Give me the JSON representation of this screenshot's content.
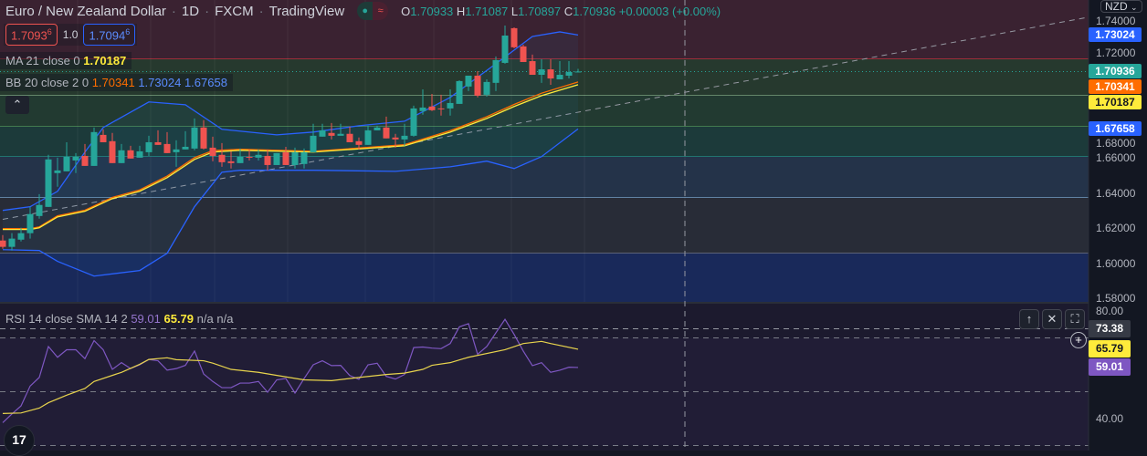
{
  "header": {
    "symbol": "Euro / New Zealand Dollar",
    "interval": "1D",
    "exchange": "FXCM",
    "source": "TradingView",
    "sep": "·",
    "ohlc": {
      "o_label": "O",
      "o": "1.70933",
      "h_label": "H",
      "h": "1.71087",
      "l_label": "L",
      "l": "1.70897",
      "c_label": "C",
      "c": "1.70936",
      "change": "+0.00003 (+0.00%)"
    }
  },
  "bid_ask": {
    "sell_main": "1.7093",
    "sell_pip": "6",
    "spread": "1.0",
    "buy_main": "1.7094",
    "buy_pip": "6"
  },
  "indicators": {
    "ma": {
      "label": "MA 21 close 0",
      "value": "1.70187",
      "color": "#ffeb3b"
    },
    "bb": {
      "label": "BB 20 close 2 0",
      "basis": "1.70341",
      "upper": "1.73024",
      "lower": "1.67658",
      "basis_color": "#ff6d00",
      "band_color": "#2962ff"
    },
    "rsi": {
      "label": "RSI 14 close SMA 14 2",
      "rsi": "59.01",
      "sma": "65.79",
      "na1": "n/a",
      "na2": "n/a",
      "rsi_color": "#7e57c2",
      "sma_color": "#ffeb3b"
    }
  },
  "collapse_icon": "chevron-up-icon",
  "currency": "NZD",
  "price_axis": {
    "ticks": [
      "1.74000",
      "1.72000",
      "1.68000",
      "1.66000",
      "1.64000",
      "1.62000",
      "1.60000",
      "1.58000"
    ],
    "badges": [
      {
        "value": "1.73024",
        "color": "#2962ff",
        "text": "#ffffff"
      },
      {
        "value": "1.70936",
        "color": "#26a69a",
        "text": "#ffffff"
      },
      {
        "value": "1.70341",
        "color": "#ff6d00",
        "text": "#ffffff"
      },
      {
        "value": "1.70187",
        "color": "#ffeb3b",
        "text": "#131722"
      },
      {
        "value": "1.67658",
        "color": "#2962ff",
        "text": "#ffffff"
      }
    ]
  },
  "rsi_axis": {
    "ticks": [
      "80.00",
      "40.00"
    ],
    "badges": [
      {
        "value": "73.38",
        "color": "#363a45",
        "text": "#ffffff"
      },
      {
        "value": "65.79",
        "color": "#ffeb3b",
        "text": "#131722"
      },
      {
        "value": "59.01",
        "color": "#7e57c2",
        "text": "#ffffff"
      }
    ]
  },
  "pane_buttons": [
    "arrow-up-icon",
    "close-icon",
    "maximize-icon"
  ],
  "logo": "TV",
  "chart_data": [
    {
      "type": "candlestick",
      "up_color": "#26a69a",
      "down_color": "#ef5350",
      "ylim": [
        1.58,
        1.745
      ],
      "y_ticks": [
        1.58,
        1.6,
        1.62,
        1.64,
        1.66,
        1.68,
        1.7,
        1.72,
        1.74
      ],
      "ohlc": [
        [
          1.6129,
          1.616,
          1.6082,
          1.6093
        ],
        [
          1.6093,
          1.6171,
          1.6072,
          1.614
        ],
        [
          1.6134,
          1.6202,
          1.6124,
          1.6171
        ],
        [
          1.6171,
          1.6321,
          1.614,
          1.628
        ],
        [
          1.6269,
          1.6394,
          1.6254,
          1.6332
        ],
        [
          1.6321,
          1.6618,
          1.6321,
          1.6592
        ],
        [
          1.6514,
          1.6602,
          1.6436,
          1.6529
        ],
        [
          1.6524,
          1.669,
          1.6524,
          1.6607
        ],
        [
          1.6586,
          1.6628,
          1.6514,
          1.6607
        ],
        [
          1.6612,
          1.668,
          1.6555,
          1.6555
        ],
        [
          1.6555,
          1.6774,
          1.6555,
          1.6748
        ],
        [
          1.6732,
          1.6764,
          1.669,
          1.669
        ],
        [
          1.6696,
          1.6743,
          1.6571,
          1.6571
        ],
        [
          1.6571,
          1.668,
          1.6571,
          1.6644
        ],
        [
          1.6644,
          1.667,
          1.6597,
          1.6597
        ],
        [
          1.6602,
          1.667,
          1.6602,
          1.6638
        ],
        [
          1.6633,
          1.6727,
          1.6612,
          1.669
        ],
        [
          1.669,
          1.6758,
          1.6675,
          1.6675
        ],
        [
          1.668,
          1.6748,
          1.6628,
          1.6628
        ],
        [
          1.6633,
          1.6701,
          1.655,
          1.6649
        ],
        [
          1.6649,
          1.6753,
          1.6649,
          1.6664
        ],
        [
          1.6654,
          1.6826,
          1.6644,
          1.6774
        ],
        [
          1.6774,
          1.6816,
          1.6649,
          1.6654
        ],
        [
          1.6659,
          1.6722,
          1.6581,
          1.6612
        ],
        [
          1.6618,
          1.6685,
          1.655,
          1.6576
        ],
        [
          1.6581,
          1.6638,
          1.654,
          1.6571
        ],
        [
          1.6571,
          1.6654,
          1.6571,
          1.6607
        ],
        [
          1.6607,
          1.6649,
          1.6586,
          1.6602
        ],
        [
          1.6602,
          1.6649,
          1.6586,
          1.6618
        ],
        [
          1.6612,
          1.6649,
          1.6529,
          1.656
        ],
        [
          1.656,
          1.6628,
          1.656,
          1.6628
        ],
        [
          1.6633,
          1.6664,
          1.656,
          1.656
        ],
        [
          1.656,
          1.6659,
          1.654,
          1.6633
        ],
        [
          1.6566,
          1.6654,
          1.654,
          1.6633
        ],
        [
          1.6633,
          1.6795,
          1.6633,
          1.6727
        ],
        [
          1.6722,
          1.6795,
          1.6722,
          1.6758
        ],
        [
          1.6743,
          1.68,
          1.6706,
          1.6727
        ],
        [
          1.6727,
          1.6795,
          1.6727,
          1.6738
        ],
        [
          1.6738,
          1.6779,
          1.669,
          1.669
        ],
        [
          1.6696,
          1.6717,
          1.6649,
          1.6675
        ],
        [
          1.6675,
          1.6784,
          1.6675,
          1.6758
        ],
        [
          1.6758,
          1.6784,
          1.6758,
          1.6774
        ],
        [
          1.6774,
          1.6836,
          1.6712,
          1.6712
        ],
        [
          1.6717,
          1.6738,
          1.6659,
          1.6706
        ],
        [
          1.6706,
          1.6795,
          1.667,
          1.6727
        ],
        [
          1.6727,
          1.6899,
          1.6722,
          1.6883
        ],
        [
          1.6868,
          1.6992,
          1.6847,
          1.6888
        ],
        [
          1.6894,
          1.6966,
          1.6868,
          1.6873
        ],
        [
          1.6883,
          1.6961,
          1.6842,
          1.6878
        ],
        [
          1.6883,
          1.6992,
          1.6842,
          1.6914
        ],
        [
          1.6909,
          1.7044,
          1.6909,
          1.7039
        ],
        [
          1.7008,
          1.707,
          1.6982,
          1.707
        ],
        [
          1.707,
          1.7096,
          1.6946,
          1.6956
        ],
        [
          1.6961,
          1.7049,
          1.6951,
          1.7034
        ],
        [
          1.7029,
          1.718,
          1.6982,
          1.7159
        ],
        [
          1.7143,
          1.7356,
          1.7138,
          1.7299
        ],
        [
          1.7341,
          1.7346,
          1.7226,
          1.7232
        ],
        [
          1.7237,
          1.7247,
          1.7148,
          1.7148
        ],
        [
          1.7153,
          1.719,
          1.7075,
          1.7075
        ],
        [
          1.7075,
          1.7164,
          1.7029,
          1.7106
        ],
        [
          1.7106,
          1.7164,
          1.7018,
          1.7054
        ],
        [
          1.7049,
          1.7153,
          1.7049,
          1.7075
        ],
        [
          1.707,
          1.7153,
          1.7054,
          1.7091
        ],
        [
          1.70933,
          1.71087,
          1.70897,
          1.70936
        ]
      ],
      "ma21": [
        [
          0,
          1.6192
        ],
        [
          3,
          1.6192
        ],
        [
          4,
          1.6202
        ],
        [
          6,
          1.6264
        ],
        [
          9,
          1.6296
        ],
        [
          12,
          1.6368
        ],
        [
          15,
          1.641
        ],
        [
          18,
          1.6488
        ],
        [
          21,
          1.6592
        ],
        [
          23,
          1.6634
        ],
        [
          26,
          1.6644
        ],
        [
          30,
          1.6639
        ],
        [
          34,
          1.6634
        ],
        [
          44,
          1.667
        ],
        [
          49,
          1.6748
        ],
        [
          53,
          1.6826
        ],
        [
          56,
          1.6894
        ],
        [
          59,
          1.6956
        ],
        [
          63,
          1.70187
        ]
      ],
      "bb_basis": [
        [
          0,
          1.6197
        ],
        [
          3,
          1.6197
        ],
        [
          4,
          1.6207
        ],
        [
          6,
          1.627
        ],
        [
          9,
          1.6302
        ],
        [
          12,
          1.6375
        ],
        [
          15,
          1.6418
        ],
        [
          18,
          1.6497
        ],
        [
          21,
          1.6602
        ],
        [
          23,
          1.6642
        ],
        [
          26,
          1.665
        ],
        [
          30,
          1.6644
        ],
        [
          34,
          1.6638
        ],
        [
          44,
          1.6676
        ],
        [
          49,
          1.6756
        ],
        [
          53,
          1.6836
        ],
        [
          56,
          1.6906
        ],
        [
          59,
          1.697
        ],
        [
          63,
          1.70341
        ]
      ],
      "bb_upper": [
        [
          0,
          1.6301
        ],
        [
          3,
          1.6322
        ],
        [
          6,
          1.641
        ],
        [
          9,
          1.6634
        ],
        [
          11,
          1.6774
        ],
        [
          16,
          1.692
        ],
        [
          20,
          1.6904
        ],
        [
          24,
          1.6764
        ],
        [
          30,
          1.6732
        ],
        [
          34,
          1.6748
        ],
        [
          39,
          1.6784
        ],
        [
          44,
          1.681
        ],
        [
          49,
          1.6946
        ],
        [
          54,
          1.7138
        ],
        [
          58,
          1.7294
        ],
        [
          61,
          1.732
        ],
        [
          63,
          1.73024
        ]
      ],
      "bb_lower": [
        [
          0,
          1.6077
        ],
        [
          4,
          1.6072
        ],
        [
          6,
          1.601
        ],
        [
          10,
          1.5926
        ],
        [
          15,
          1.5958
        ],
        [
          18,
          1.6056
        ],
        [
          21,
          1.6322
        ],
        [
          24,
          1.6519
        ],
        [
          26,
          1.653
        ],
        [
          34,
          1.653
        ],
        [
          43,
          1.6524
        ],
        [
          49,
          1.655
        ],
        [
          53,
          1.6582
        ],
        [
          56,
          1.654
        ],
        [
          59,
          1.6608
        ],
        [
          63,
          1.67658
        ]
      ],
      "levels": [
        {
          "price": 1.7164,
          "color": "#f23645",
          "fill": "#3a2231"
        },
        {
          "price": 1.6956,
          "color": "#a5d6a7",
          "fill": "#26392e"
        },
        {
          "price": 1.6779,
          "color": "#66bb6a",
          "fill": "#223a31"
        },
        {
          "price": 1.6607,
          "color": "#26a69a",
          "fill": "#1c3a3a"
        },
        {
          "price": 1.6374,
          "color": "#90caf9",
          "fill": "#243349"
        },
        {
          "price": 1.6056,
          "color": "#9598a1",
          "fill": "#282c37"
        },
        {
          "price": 1.57,
          "color": "#1e3a8a",
          "fill": "#19295a"
        }
      ],
      "trendline": [
        [
          0,
          1.625
        ],
        [
          119,
          1.7405
        ]
      ],
      "last_price": 1.70936
    },
    {
      "type": "line",
      "ylim": [
        30,
        80
      ],
      "bands": [
        70,
        50,
        30
      ],
      "crosshair_value": 73.38,
      "rsi": [
        38.5,
        41.7,
        44.7,
        52.1,
        55.3,
        66.8,
        62.8,
        65.6,
        65.6,
        62.3,
        69.0,
        65.6,
        58.3,
        60.8,
        58.6,
        60.0,
        62.0,
        61.5,
        58.0,
        58.6,
        59.8,
        65.1,
        56.6,
        53.8,
        51.5,
        51.5,
        53.2,
        53.2,
        53.8,
        49.8,
        54.4,
        54.9,
        49.5,
        54.9,
        60.0,
        61.5,
        59.7,
        59.8,
        56.0,
        54.6,
        60.0,
        60.6,
        55.7,
        54.7,
        56.4,
        66.4,
        66.6,
        66.2,
        66.0,
        67.9,
        74.1,
        75.3,
        63.9,
        66.8,
        71.9,
        76.9,
        71.3,
        65.1,
        59.7,
        60.8,
        57.2,
        58.0,
        59.1,
        59.01
      ],
      "rsi_sma": [
        [
          0,
          41.9
        ],
        [
          2,
          42.1
        ],
        [
          4,
          43.9
        ],
        [
          5,
          45.9
        ],
        [
          7,
          48.7
        ],
        [
          9,
          51.2
        ],
        [
          10,
          53.8
        ],
        [
          13,
          57.2
        ],
        [
          15,
          60.2
        ],
        [
          16,
          62.0
        ],
        [
          18,
          62.6
        ],
        [
          19,
          61.9
        ],
        [
          22,
          61.5
        ],
        [
          23,
          60.6
        ],
        [
          25,
          58.3
        ],
        [
          28,
          57.2
        ],
        [
          31,
          55.5
        ],
        [
          33,
          54.4
        ],
        [
          36,
          54.1
        ],
        [
          39,
          55.3
        ],
        [
          42,
          56.4
        ],
        [
          44,
          56.9
        ],
        [
          46,
          58.3
        ],
        [
          47,
          59.8
        ],
        [
          49,
          60.8
        ],
        [
          51,
          62.8
        ],
        [
          55,
          65.6
        ],
        [
          57,
          67.9
        ],
        [
          59,
          68.7
        ],
        [
          60,
          67.9
        ],
        [
          63,
          65.79
        ]
      ]
    }
  ]
}
